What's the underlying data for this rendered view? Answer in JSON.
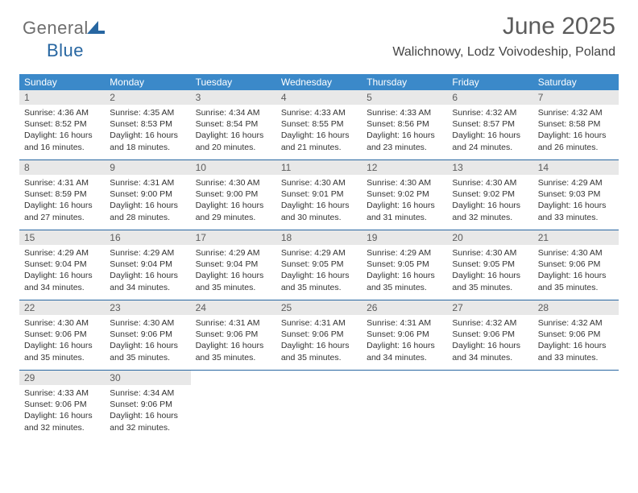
{
  "logo": {
    "general": "General",
    "blue": "Blue"
  },
  "header": {
    "month_year": "June 2025",
    "location": "Walichnowy, Lodz Voivodeship, Poland"
  },
  "colors": {
    "header_bar": "#3b89c9",
    "row_border": "#2766a1",
    "daynum_bg": "#e8e8e8",
    "logo_blue": "#2766a1",
    "logo_gray": "#6e6e6e"
  },
  "days_of_week": [
    "Sunday",
    "Monday",
    "Tuesday",
    "Wednesday",
    "Thursday",
    "Friday",
    "Saturday"
  ],
  "weeks": [
    [
      {
        "n": "1",
        "sr": "4:36 AM",
        "ss": "8:52 PM",
        "dl": "16 hours and 16 minutes."
      },
      {
        "n": "2",
        "sr": "4:35 AM",
        "ss": "8:53 PM",
        "dl": "16 hours and 18 minutes."
      },
      {
        "n": "3",
        "sr": "4:34 AM",
        "ss": "8:54 PM",
        "dl": "16 hours and 20 minutes."
      },
      {
        "n": "4",
        "sr": "4:33 AM",
        "ss": "8:55 PM",
        "dl": "16 hours and 21 minutes."
      },
      {
        "n": "5",
        "sr": "4:33 AM",
        "ss": "8:56 PM",
        "dl": "16 hours and 23 minutes."
      },
      {
        "n": "6",
        "sr": "4:32 AM",
        "ss": "8:57 PM",
        "dl": "16 hours and 24 minutes."
      },
      {
        "n": "7",
        "sr": "4:32 AM",
        "ss": "8:58 PM",
        "dl": "16 hours and 26 minutes."
      }
    ],
    [
      {
        "n": "8",
        "sr": "4:31 AM",
        "ss": "8:59 PM",
        "dl": "16 hours and 27 minutes."
      },
      {
        "n": "9",
        "sr": "4:31 AM",
        "ss": "9:00 PM",
        "dl": "16 hours and 28 minutes."
      },
      {
        "n": "10",
        "sr": "4:30 AM",
        "ss": "9:00 PM",
        "dl": "16 hours and 29 minutes."
      },
      {
        "n": "11",
        "sr": "4:30 AM",
        "ss": "9:01 PM",
        "dl": "16 hours and 30 minutes."
      },
      {
        "n": "12",
        "sr": "4:30 AM",
        "ss": "9:02 PM",
        "dl": "16 hours and 31 minutes."
      },
      {
        "n": "13",
        "sr": "4:30 AM",
        "ss": "9:02 PM",
        "dl": "16 hours and 32 minutes."
      },
      {
        "n": "14",
        "sr": "4:29 AM",
        "ss": "9:03 PM",
        "dl": "16 hours and 33 minutes."
      }
    ],
    [
      {
        "n": "15",
        "sr": "4:29 AM",
        "ss": "9:04 PM",
        "dl": "16 hours and 34 minutes."
      },
      {
        "n": "16",
        "sr": "4:29 AM",
        "ss": "9:04 PM",
        "dl": "16 hours and 34 minutes."
      },
      {
        "n": "17",
        "sr": "4:29 AM",
        "ss": "9:04 PM",
        "dl": "16 hours and 35 minutes."
      },
      {
        "n": "18",
        "sr": "4:29 AM",
        "ss": "9:05 PM",
        "dl": "16 hours and 35 minutes."
      },
      {
        "n": "19",
        "sr": "4:29 AM",
        "ss": "9:05 PM",
        "dl": "16 hours and 35 minutes."
      },
      {
        "n": "20",
        "sr": "4:30 AM",
        "ss": "9:05 PM",
        "dl": "16 hours and 35 minutes."
      },
      {
        "n": "21",
        "sr": "4:30 AM",
        "ss": "9:06 PM",
        "dl": "16 hours and 35 minutes."
      }
    ],
    [
      {
        "n": "22",
        "sr": "4:30 AM",
        "ss": "9:06 PM",
        "dl": "16 hours and 35 minutes."
      },
      {
        "n": "23",
        "sr": "4:30 AM",
        "ss": "9:06 PM",
        "dl": "16 hours and 35 minutes."
      },
      {
        "n": "24",
        "sr": "4:31 AM",
        "ss": "9:06 PM",
        "dl": "16 hours and 35 minutes."
      },
      {
        "n": "25",
        "sr": "4:31 AM",
        "ss": "9:06 PM",
        "dl": "16 hours and 35 minutes."
      },
      {
        "n": "26",
        "sr": "4:31 AM",
        "ss": "9:06 PM",
        "dl": "16 hours and 34 minutes."
      },
      {
        "n": "27",
        "sr": "4:32 AM",
        "ss": "9:06 PM",
        "dl": "16 hours and 34 minutes."
      },
      {
        "n": "28",
        "sr": "4:32 AM",
        "ss": "9:06 PM",
        "dl": "16 hours and 33 minutes."
      }
    ],
    [
      {
        "n": "29",
        "sr": "4:33 AM",
        "ss": "9:06 PM",
        "dl": "16 hours and 32 minutes."
      },
      {
        "n": "30",
        "sr": "4:34 AM",
        "ss": "9:06 PM",
        "dl": "16 hours and 32 minutes."
      },
      null,
      null,
      null,
      null,
      null
    ]
  ],
  "labels": {
    "sunrise": "Sunrise:",
    "sunset": "Sunset:",
    "daylight": "Daylight:"
  }
}
